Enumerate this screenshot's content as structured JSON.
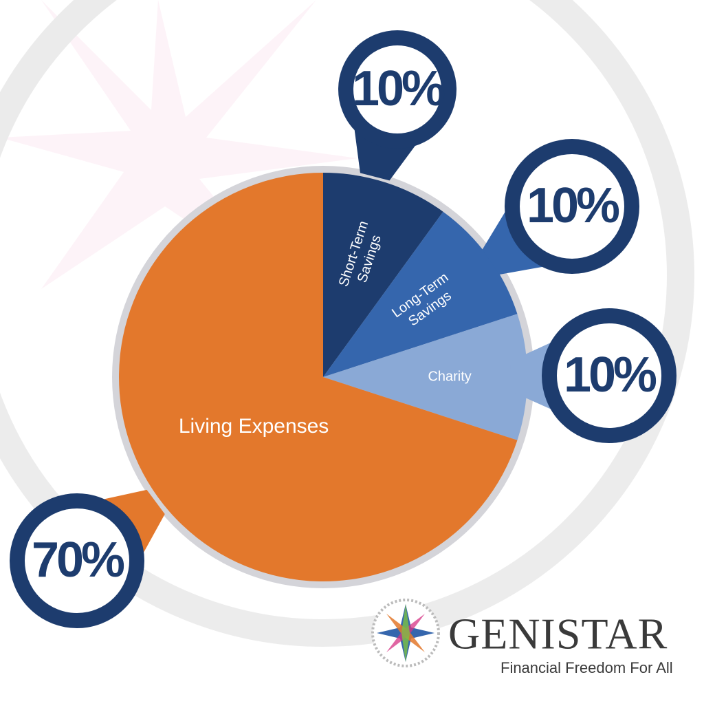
{
  "chart_data": {
    "type": "pie",
    "categories": [
      "Short-Term Savings",
      "Long-Term Savings",
      "Charity",
      "Living Expenses"
    ],
    "values": [
      10,
      10,
      10,
      70
    ],
    "value_labels": [
      "10%",
      "10%",
      "10%",
      "70%"
    ],
    "colors": [
      "#1d3c6e",
      "#3566ad",
      "#8aa9d6",
      "#e3782c"
    ]
  },
  "logo": {
    "name": "GENISTAR",
    "tagline": "Financial Freedom For All"
  }
}
